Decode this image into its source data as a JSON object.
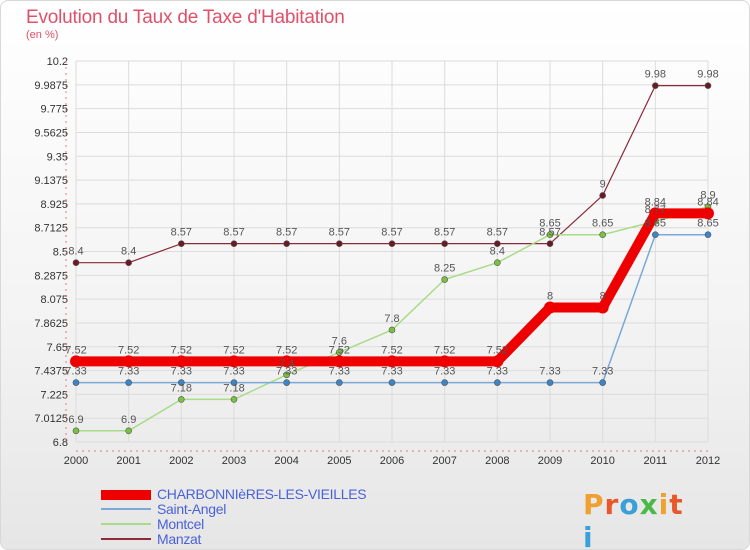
{
  "header": {
    "title": "Evolution du Taux de Taxe d'Habitation",
    "subtitle": "(en %)"
  },
  "logo": {
    "text": "Proxiti",
    "letter_colors": [
      "#f0a030",
      "#e8582a",
      "#3aa0d8",
      "#4cb848",
      "#f0a030",
      "#e8582a",
      "#3aa0d8"
    ]
  },
  "colors": {
    "grid": "#dcdcdc",
    "axis_text": "#333333",
    "dashed_axis": "#e08080"
  },
  "chart_data": {
    "type": "line",
    "title": "Evolution du Taux de Taxe d'Habitation",
    "ylabel": "(en %)",
    "xlabel": "",
    "x": [
      "2000",
      "2001",
      "2002",
      "2003",
      "2004",
      "2005",
      "2006",
      "2007",
      "2008",
      "2009",
      "2010",
      "2011",
      "2012"
    ],
    "ylim": [
      6.8,
      10.2
    ],
    "yticks": [
      "6.8",
      "7.0125",
      "7.225",
      "7.4375",
      "7.65",
      "7.8625",
      "8.075",
      "8.2875",
      "8.5",
      "8.7125",
      "8.925",
      "9.1375",
      "9.35",
      "9.5625",
      "9.775",
      "9.9875",
      "10.2"
    ],
    "grid": true,
    "legend_position": "bottom-left",
    "series": [
      {
        "name": "CHARBONNIèRES-LES-VIEILLES",
        "color": "#ee0000",
        "marker": "#ee0000",
        "width": 10,
        "values": [
          7.52,
          7.52,
          7.52,
          7.52,
          7.52,
          7.52,
          7.52,
          7.52,
          7.52,
          8,
          8,
          8.84,
          8.84
        ],
        "labels": [
          "7.52",
          "7.52",
          "7.52",
          "7.52",
          "7.52",
          "7.52",
          "7.52",
          "7.52",
          "7.52",
          "8",
          "8",
          "8.84",
          "8.84"
        ]
      },
      {
        "name": "Saint-Angel",
        "color": "#7aa8d8",
        "marker": "#3a86c8",
        "width": 1.5,
        "values": [
          7.33,
          7.33,
          7.33,
          7.33,
          7.33,
          7.33,
          7.33,
          7.33,
          7.33,
          7.33,
          7.33,
          8.65,
          8.65
        ],
        "labels": [
          "7.33",
          "7.33",
          "7.33",
          "7.33",
          "7.33",
          "7.33",
          "7.33",
          "7.33",
          "7.33",
          "7.33",
          "7.33",
          "8.65",
          "8.65"
        ]
      },
      {
        "name": "Montcel",
        "color": "#a8dc88",
        "marker": "#7cc040",
        "width": 1.5,
        "values": [
          6.9,
          6.9,
          7.18,
          7.18,
          7.4,
          7.6,
          7.8,
          8.25,
          8.4,
          8.65,
          8.65,
          8.77,
          8.9
        ],
        "labels": [
          "6.9",
          "6.9",
          "7.18",
          "7.18",
          "7.4",
          "7.6",
          "7.8",
          "8.25",
          "8.4",
          "8.65",
          "8.65",
          "8.77",
          "8.9"
        ]
      },
      {
        "name": "Manzat",
        "color": "#8a2a3a",
        "marker": "#6a1a24",
        "width": 1.2,
        "values": [
          8.4,
          8.4,
          8.57,
          8.57,
          8.57,
          8.57,
          8.57,
          8.57,
          8.57,
          8.57,
          9,
          9.98,
          9.98
        ],
        "labels": [
          "8.4",
          "8.4",
          "8.57",
          "8.57",
          "8.57",
          "8.57",
          "8.57",
          "8.57",
          "8.57",
          "8.57",
          "9",
          "9.98",
          "9.98"
        ]
      }
    ]
  }
}
